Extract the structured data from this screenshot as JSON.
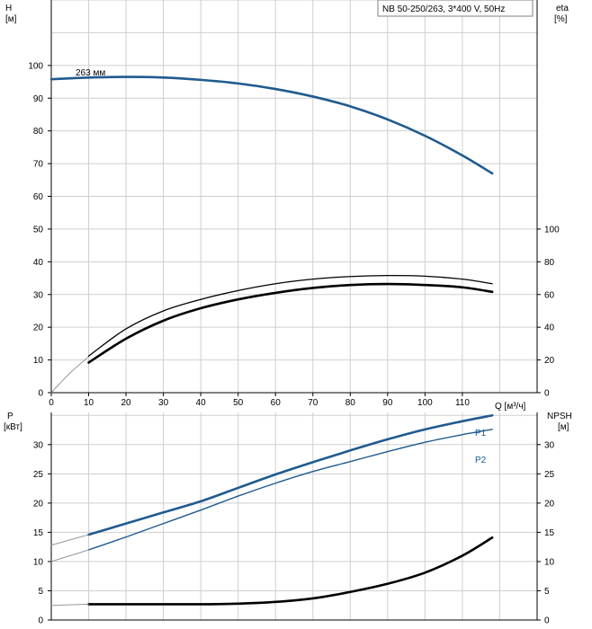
{
  "colors": {
    "head_curve": "#1f5a8f",
    "power_curve": "#1f5a8f",
    "eff_curve": "#000000",
    "npsh_curve": "#000000",
    "grid": "#cfcfcf"
  },
  "chart_data": {
    "type": "line",
    "title": "NB 50-250/263, 3*400 V, 50Hz",
    "x_axis": {
      "label": "Q [м³/ч]",
      "ticks": [
        0,
        10,
        20,
        30,
        40,
        50,
        60,
        70,
        80,
        90,
        100,
        110
      ],
      "range": [
        0,
        130
      ]
    },
    "upper": {
      "left_axis": {
        "label_1": "H",
        "label_2": "[м]",
        "range": [
          0,
          120
        ],
        "ticks": [
          0,
          10,
          20,
          30,
          40,
          50,
          60,
          70,
          80,
          90,
          100
        ]
      },
      "right_axis": {
        "label_1": "eta",
        "label_2": "[%]",
        "range": [
          0,
          240
        ],
        "ticks": [
          0,
          20,
          40,
          60,
          80,
          100
        ]
      },
      "annotation": "263 мм",
      "series": [
        {
          "key": "head",
          "axis": "left",
          "style": "bold-blue",
          "x": [
            0,
            10,
            20,
            30,
            40,
            50,
            60,
            70,
            80,
            90,
            100,
            110,
            118
          ],
          "y": [
            95.8,
            96.3,
            96.5,
            96.3,
            95.6,
            94.5,
            92.8,
            90.5,
            87.5,
            83.5,
            78.5,
            72.5,
            67.0
          ]
        },
        {
          "key": "eta_thin",
          "axis": "left",
          "style": "thin-gray",
          "x": [
            0,
            5,
            10
          ],
          "y": [
            0,
            6,
            11
          ]
        },
        {
          "key": "eta_upper",
          "axis": "left",
          "style": "medium-black",
          "x": [
            10,
            20,
            30,
            40,
            50,
            60,
            70,
            80,
            90,
            100,
            110,
            118
          ],
          "y": [
            11.2,
            19.5,
            25.0,
            28.5,
            31.2,
            33.3,
            34.7,
            35.5,
            35.8,
            35.6,
            34.7,
            33.3
          ]
        },
        {
          "key": "eta_lower",
          "axis": "left",
          "style": "bold-black",
          "x": [
            10,
            20,
            30,
            40,
            50,
            60,
            70,
            80,
            90,
            100,
            110,
            118
          ],
          "y": [
            9.2,
            16.5,
            22.0,
            25.8,
            28.5,
            30.5,
            32.0,
            32.9,
            33.2,
            32.9,
            32.2,
            30.8
          ]
        }
      ]
    },
    "lower": {
      "left_axis": {
        "label_1": "P",
        "label_2": "[кВт]",
        "range": [
          0,
          35.5
        ],
        "ticks": [
          0,
          5,
          10,
          15,
          20,
          25,
          30
        ]
      },
      "right_axis": {
        "label_1": "NPSH",
        "label_2": "[м]",
        "range": [
          0,
          35.5
        ],
        "ticks": [
          0,
          5,
          10,
          15,
          20,
          25,
          30
        ]
      },
      "series": [
        {
          "key": "p1",
          "name": "P1",
          "axis": "left",
          "style": "bold-blue",
          "x": [
            10,
            20,
            30,
            40,
            50,
            60,
            70,
            80,
            90,
            100,
            110,
            118
          ],
          "y": [
            14.6,
            16.5,
            18.4,
            20.3,
            22.6,
            24.9,
            27.0,
            29.0,
            30.9,
            32.6,
            34.0,
            35.0
          ]
        },
        {
          "key": "p1_ext",
          "axis": "left",
          "style": "thin-gray",
          "x": [
            0,
            5,
            10
          ],
          "y": [
            12.8,
            13.7,
            14.6
          ]
        },
        {
          "key": "p2",
          "name": "P2",
          "axis": "left",
          "style": "medium-blue",
          "x": [
            10,
            20,
            30,
            40,
            50,
            60,
            70,
            80,
            90,
            100,
            110,
            118
          ],
          "y": [
            12.0,
            14.2,
            16.5,
            18.8,
            21.2,
            23.4,
            25.4,
            27.1,
            28.8,
            30.4,
            31.7,
            32.6
          ]
        },
        {
          "key": "p2_ext",
          "axis": "left",
          "style": "thin-gray",
          "x": [
            0,
            5,
            10
          ],
          "y": [
            10.0,
            11.0,
            12.0
          ]
        },
        {
          "key": "npsh",
          "axis": "right",
          "style": "bold-black",
          "x": [
            10,
            20,
            30,
            40,
            50,
            60,
            70,
            80,
            90,
            100,
            110,
            118
          ],
          "y": [
            2.7,
            2.7,
            2.7,
            2.7,
            2.8,
            3.1,
            3.7,
            4.8,
            6.2,
            8.1,
            11.0,
            14.1
          ]
        },
        {
          "key": "npsh_ext",
          "axis": "right",
          "style": "thin-gray",
          "x": [
            0,
            5,
            10
          ],
          "y": [
            2.5,
            2.6,
            2.7
          ]
        }
      ]
    }
  }
}
